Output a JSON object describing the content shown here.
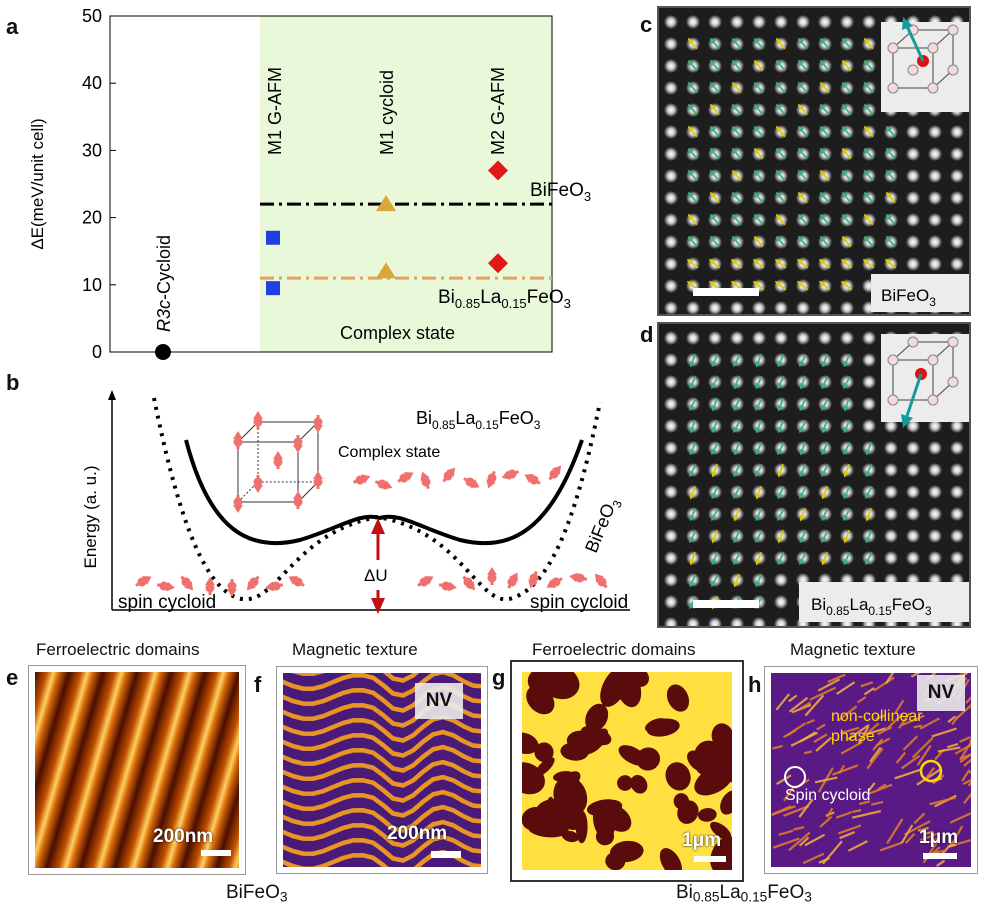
{
  "panel_labels": {
    "a": "a",
    "b": "b",
    "c": "c",
    "d": "d",
    "e": "e",
    "f": "f",
    "g": "g",
    "h": "h"
  },
  "chart_data": {
    "type": "scatter",
    "title": "",
    "xlabel": "",
    "ylabel": "ΔE(meV/unit cell)",
    "ylim": [
      0,
      50
    ],
    "yticks": [
      "0",
      "10",
      "20",
      "30",
      "40",
      "50"
    ],
    "categories": [
      "R3c-Cycloid",
      "M1 G-AFM",
      "M1 cycloid",
      "M2 G-AFM"
    ],
    "category_labels": {
      "r3c_italic": "R3c",
      "r3c_rest": "-Cycloid",
      "m1_gafm": "M1 G-AFM",
      "m1_cycloid": "M1 cycloid",
      "m2_gafm": "M2 G-AFM"
    },
    "series": [
      {
        "name": "R3c-Cycloid",
        "marker": "circle",
        "color": "#000000",
        "points": [
          {
            "x": "R3c-Cycloid",
            "y": 0
          }
        ]
      },
      {
        "name": "M1 G-AFM",
        "marker": "square",
        "color": "#1f3fe0",
        "points": [
          {
            "x": "M1 G-AFM",
            "y": 17
          },
          {
            "x": "M1 G-AFM",
            "y": 9.5
          }
        ]
      },
      {
        "name": "M1 cycloid",
        "marker": "triangle",
        "color": "#d8a838",
        "points": [
          {
            "x": "M1 cycloid",
            "y": 22
          },
          {
            "x": "M1 cycloid",
            "y": 12
          }
        ]
      },
      {
        "name": "M2 G-AFM",
        "marker": "diamond",
        "color": "#e01818",
        "points": [
          {
            "x": "M2 G-AFM",
            "y": 27
          },
          {
            "x": "M2 G-AFM",
            "y": 13.2
          }
        ]
      }
    ],
    "reference_lines": [
      {
        "name": "BiFeO3",
        "y": 22,
        "color": "#000000",
        "style": "dashdot"
      },
      {
        "name": "Bi0.85La0.15FeO3",
        "y": 11,
        "color": "#e8a060",
        "style": "dashdot"
      }
    ],
    "shaded_region": {
      "label": "Complex state",
      "from_category": "M1 G-AFM",
      "color": "#eaf8da"
    }
  },
  "panel_a": {
    "bfo_label_main": "BiFeO",
    "bfo_sub": "3",
    "blfo": {
      "p1": "Bi",
      "s1": "0.85",
      "p2": "La",
      "s2": "0.15",
      "p3": "FeO",
      "s3": "3"
    },
    "complex_state": "Complex state"
  },
  "panel_b": {
    "ylabel": "Energy (a. u.)",
    "complex_state": "Complex state",
    "delta_u": "ΔU",
    "spin_cycloid_left": "spin cycloid",
    "spin_cycloid_right": "spin cycloid",
    "bfo_main": "BiFeO",
    "bfo_sub": "3",
    "blfo": {
      "p1": "Bi",
      "s1": "0.85",
      "p2": "La",
      "s2": "0.15",
      "p3": "FeO",
      "s3": "3"
    }
  },
  "panel_c": {
    "label_main": "BiFeO",
    "label_sub": "3"
  },
  "panel_d": {
    "blfo": {
      "p1": "Bi",
      "s1": "0.85",
      "p2": "La",
      "s2": "0.15",
      "p3": "FeO",
      "s3": "3"
    }
  },
  "panel_e": {
    "title": "Ferroelectric domains",
    "scalebar": "200nm"
  },
  "panel_f": {
    "title": "Magnetic texture",
    "badge": "NV",
    "scalebar": "200nm"
  },
  "panel_g": {
    "title": "Ferroelectric domains",
    "scalebar": "1μm"
  },
  "panel_h": {
    "title": "Magnetic texture",
    "badge": "NV",
    "scalebar": "1μm",
    "noncollinear_line1": "non-collinear",
    "noncollinear_line2": "phase",
    "spin_cycloid": "Spin cycloid"
  },
  "bottom": {
    "bfo_main": "BiFeO",
    "bfo_sub": "3",
    "blfo": {
      "p1": "Bi",
      "s1": "0.85",
      "p2": "La",
      "s2": "0.15",
      "p3": "FeO",
      "s3": "3"
    }
  },
  "colors": {
    "shade": "#eaf8da",
    "arrow_green": "#3fb27a",
    "arrow_yellow": "#d8c81a",
    "teal": "#149a9a",
    "spin_red": "#f07070",
    "du_red": "#c01010"
  }
}
